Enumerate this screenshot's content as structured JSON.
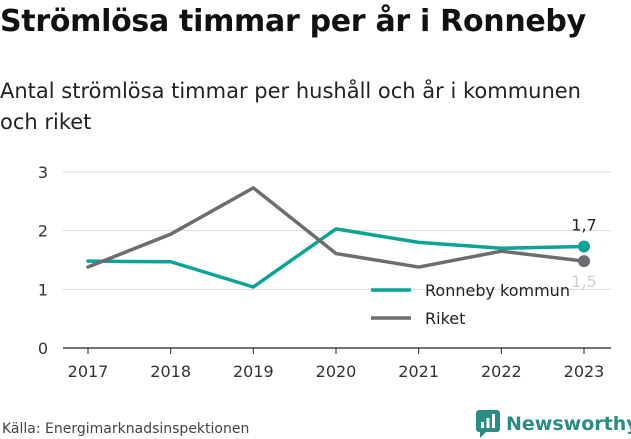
{
  "header": {
    "title": "Strömlösa timmar per år i Ronneby",
    "subtitle": "Antal strömlösa timmar per hushåll och år i kommunen och riket"
  },
  "footer": {
    "source": "Källa: Energimarknadsinspektionen",
    "brand": "Newsworthy"
  },
  "colors": {
    "ronneby": "#0aa497",
    "riket": "#6d6c70",
    "grid": "#d9d9d9",
    "brand": "#2a8c82"
  },
  "chart_data": {
    "type": "line",
    "categories": [
      "2017",
      "2018",
      "2019",
      "2020",
      "2021",
      "2022",
      "2023"
    ],
    "ylim": [
      0,
      3
    ],
    "yticks": [
      "0",
      "1",
      "2",
      "3"
    ],
    "grid": true,
    "legend_position": "right",
    "series": [
      {
        "name": "Ronneby kommun",
        "values": [
          1.48,
          1.47,
          1.04,
          2.03,
          1.8,
          1.7,
          1.73
        ],
        "color": "#0aa497",
        "end_label": "1,7"
      },
      {
        "name": "Riket",
        "values": [
          1.38,
          1.94,
          2.73,
          1.61,
          1.38,
          1.65,
          1.48
        ],
        "color": "#6d6c70",
        "end_label": "1,5"
      }
    ]
  }
}
